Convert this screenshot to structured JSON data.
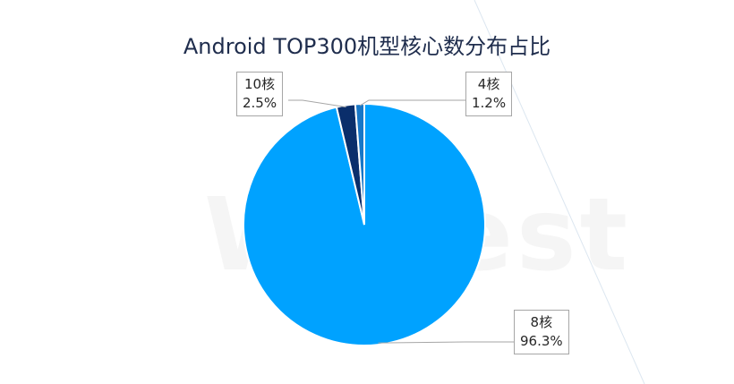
{
  "chart_data": {
    "type": "pie",
    "title": "Android TOP300机型核心数分布占比",
    "categories": [
      "8核",
      "10核",
      "4核"
    ],
    "values": [
      96.3,
      2.5,
      1.2
    ],
    "value_labels": [
      "96.3%",
      "2.5%",
      "1.2%"
    ],
    "colors": [
      "#00a2ff",
      "#0a2e6b",
      "#1877c7"
    ],
    "start_angle_deg": 0,
    "legend": "none",
    "watermark": "WeTest"
  }
}
